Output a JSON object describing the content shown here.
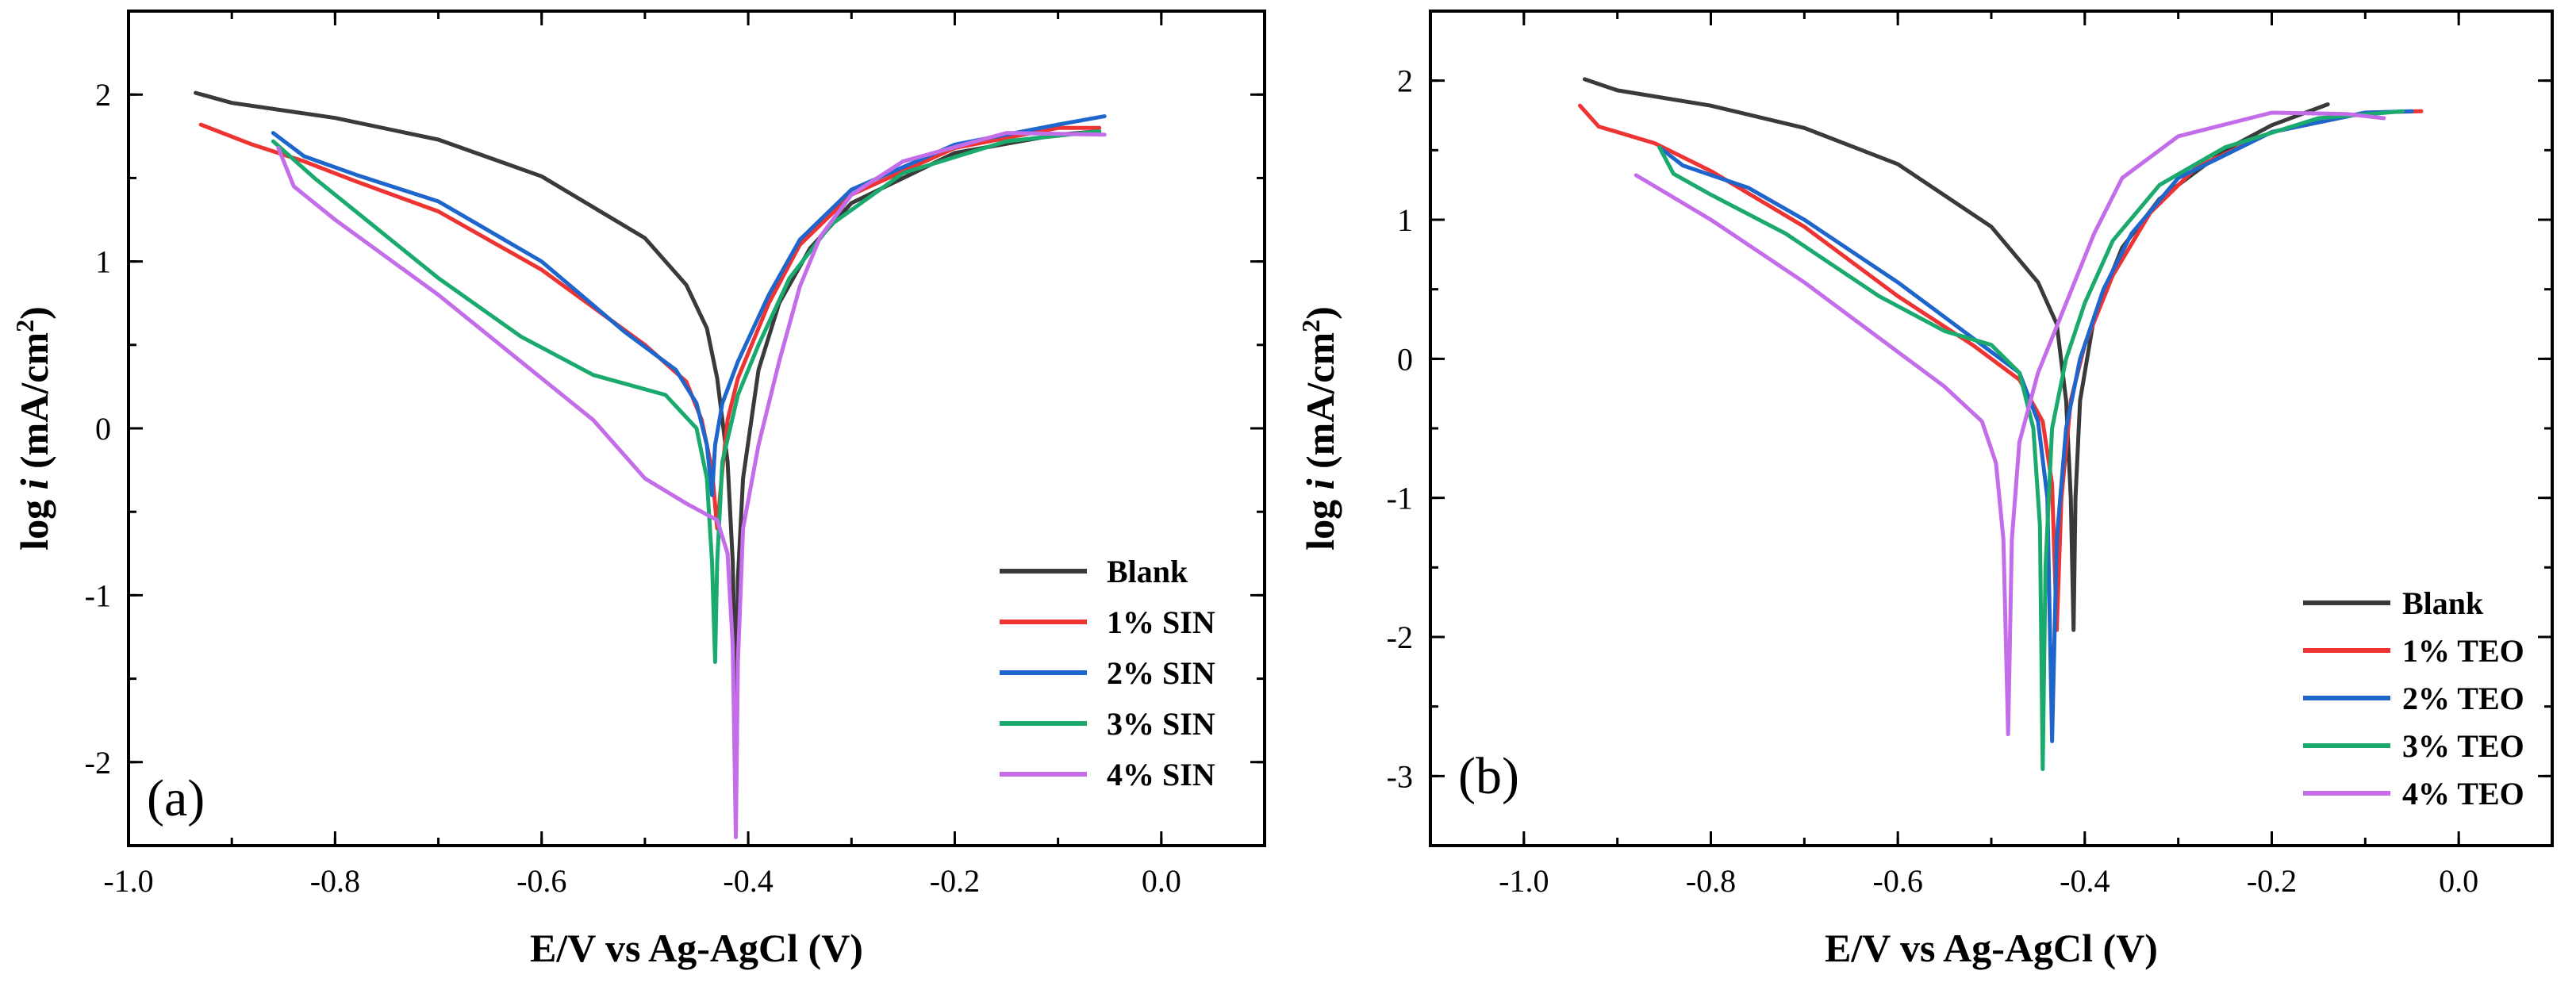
{
  "chart_data": [
    {
      "type": "line",
      "panel_label": "(a)",
      "xlabel": "E/V vs Ag-AgCl (V)",
      "ylabel_prefix": "log ",
      "ylabel_var": "i",
      "ylabel_units": " (mA/cm",
      "ylabel_sup": "2",
      "ylabel_close": ")",
      "xlim": [
        -1.0,
        0.1
      ],
      "ylim": [
        -2.5,
        2.5
      ],
      "xticks": [
        -1.0,
        -0.8,
        -0.6,
        -0.4,
        -0.2,
        0.0
      ],
      "xtick_labels": [
        "-1.0",
        "-0.8",
        "-0.6",
        "-0.4",
        "-0.2",
        "0.0"
      ],
      "yticks": [
        -2,
        -1,
        0,
        1,
        2
      ],
      "ytick_labels": [
        "-2",
        "-1",
        "0",
        "1",
        "2"
      ],
      "legend_position": "bottom-right",
      "series": [
        {
          "name": "Blank",
          "color": "#3a3a3a",
          "points": [
            [
              -0.935,
              2.01
            ],
            [
              -0.9,
              1.95
            ],
            [
              -0.8,
              1.86
            ],
            [
              -0.7,
              1.73
            ],
            [
              -0.6,
              1.51
            ],
            [
              -0.5,
              1.14
            ],
            [
              -0.46,
              0.86
            ],
            [
              -0.44,
              0.6
            ],
            [
              -0.43,
              0.3
            ],
            [
              -0.42,
              -0.2
            ],
            [
              -0.415,
              -0.8
            ],
            [
              -0.411,
              -1.9
            ],
            [
              -0.41,
              -0.9
            ],
            [
              -0.405,
              -0.3
            ],
            [
              -0.39,
              0.35
            ],
            [
              -0.37,
              0.75
            ],
            [
              -0.34,
              1.08
            ],
            [
              -0.3,
              1.35
            ],
            [
              -0.2,
              1.65
            ],
            [
              -0.1,
              1.76
            ],
            [
              -0.06,
              1.78
            ]
          ]
        },
        {
          "name": "1% SIN",
          "color": "#ee3333",
          "points": [
            [
              -0.93,
              1.82
            ],
            [
              -0.88,
              1.7
            ],
            [
              -0.83,
              1.6
            ],
            [
              -0.78,
              1.48
            ],
            [
              -0.7,
              1.3
            ],
            [
              -0.6,
              0.95
            ],
            [
              -0.5,
              0.5
            ],
            [
              -0.46,
              0.28
            ],
            [
              -0.445,
              0.05
            ],
            [
              -0.435,
              -0.25
            ],
            [
              -0.43,
              -0.6
            ],
            [
              -0.425,
              -0.25
            ],
            [
              -0.42,
              0.05
            ],
            [
              -0.41,
              0.3
            ],
            [
              -0.38,
              0.75
            ],
            [
              -0.35,
              1.1
            ],
            [
              -0.3,
              1.4
            ],
            [
              -0.2,
              1.68
            ],
            [
              -0.1,
              1.8
            ],
            [
              -0.06,
              1.8
            ]
          ]
        },
        {
          "name": "2% SIN",
          "color": "#1f66cc",
          "points": [
            [
              -0.86,
              1.77
            ],
            [
              -0.83,
              1.63
            ],
            [
              -0.78,
              1.52
            ],
            [
              -0.7,
              1.36
            ],
            [
              -0.6,
              1.0
            ],
            [
              -0.52,
              0.58
            ],
            [
              -0.47,
              0.35
            ],
            [
              -0.45,
              0.15
            ],
            [
              -0.44,
              -0.1
            ],
            [
              -0.435,
              -0.4
            ],
            [
              -0.432,
              -0.1
            ],
            [
              -0.425,
              0.15
            ],
            [
              -0.41,
              0.4
            ],
            [
              -0.38,
              0.8
            ],
            [
              -0.35,
              1.13
            ],
            [
              -0.3,
              1.43
            ],
            [
              -0.2,
              1.7
            ],
            [
              -0.1,
              1.82
            ],
            [
              -0.055,
              1.87
            ]
          ]
        },
        {
          "name": "3% SIN",
          "color": "#1aaa6e",
          "points": [
            [
              -0.86,
              1.72
            ],
            [
              -0.82,
              1.5
            ],
            [
              -0.76,
              1.2
            ],
            [
              -0.7,
              0.9
            ],
            [
              -0.62,
              0.55
            ],
            [
              -0.55,
              0.32
            ],
            [
              -0.48,
              0.2
            ],
            [
              -0.45,
              0.0
            ],
            [
              -0.44,
              -0.3
            ],
            [
              -0.435,
              -0.8
            ],
            [
              -0.432,
              -1.4
            ],
            [
              -0.43,
              -0.8
            ],
            [
              -0.425,
              -0.2
            ],
            [
              -0.41,
              0.2
            ],
            [
              -0.39,
              0.5
            ],
            [
              -0.36,
              0.9
            ],
            [
              -0.32,
              1.22
            ],
            [
              -0.25,
              1.53
            ],
            [
              -0.15,
              1.72
            ],
            [
              -0.06,
              1.78
            ]
          ]
        },
        {
          "name": "4% SIN",
          "color": "#c46de8",
          "points": [
            [
              -0.855,
              1.68
            ],
            [
              -0.84,
              1.45
            ],
            [
              -0.8,
              1.25
            ],
            [
              -0.7,
              0.8
            ],
            [
              -0.6,
              0.3
            ],
            [
              -0.55,
              0.05
            ],
            [
              -0.5,
              -0.3
            ],
            [
              -0.46,
              -0.45
            ],
            [
              -0.43,
              -0.55
            ],
            [
              -0.42,
              -0.75
            ],
            [
              -0.415,
              -1.3
            ],
            [
              -0.412,
              -2.45
            ],
            [
              -0.41,
              -1.4
            ],
            [
              -0.405,
              -0.6
            ],
            [
              -0.39,
              -0.1
            ],
            [
              -0.37,
              0.4
            ],
            [
              -0.35,
              0.85
            ],
            [
              -0.33,
              1.15
            ],
            [
              -0.3,
              1.4
            ],
            [
              -0.25,
              1.6
            ],
            [
              -0.15,
              1.77
            ],
            [
              -0.055,
              1.76
            ]
          ]
        }
      ]
    },
    {
      "type": "line",
      "panel_label": "(b)",
      "xlabel": "E/V vs Ag-AgCl (V)",
      "ylabel_prefix": "log ",
      "ylabel_var": "i",
      "ylabel_units": " (mA/cm",
      "ylabel_sup": "2",
      "ylabel_close": ")",
      "xlim": [
        -1.1,
        0.1
      ],
      "ylim": [
        -3.5,
        2.5
      ],
      "xticks": [
        -1.0,
        -0.8,
        -0.6,
        -0.4,
        -0.2,
        0.0
      ],
      "xtick_labels": [
        "-1.0",
        "-0.8",
        "-0.6",
        "-0.4",
        "-0.2",
        "0.0"
      ],
      "yticks": [
        -3,
        -2,
        -1,
        0,
        1,
        2
      ],
      "ytick_labels": [
        "-3",
        "-2",
        "-1",
        "0",
        "1",
        "2"
      ],
      "legend_position": "bottom-right",
      "series": [
        {
          "name": "Blank",
          "color": "#3a3a3a",
          "points": [
            [
              -0.935,
              2.01
            ],
            [
              -0.9,
              1.93
            ],
            [
              -0.8,
              1.82
            ],
            [
              -0.7,
              1.66
            ],
            [
              -0.6,
              1.4
            ],
            [
              -0.5,
              0.95
            ],
            [
              -0.45,
              0.55
            ],
            [
              -0.43,
              0.25
            ],
            [
              -0.42,
              -0.3
            ],
            [
              -0.415,
              -1.0
            ],
            [
              -0.412,
              -1.95
            ],
            [
              -0.41,
              -1.0
            ],
            [
              -0.405,
              -0.3
            ],
            [
              -0.39,
              0.3
            ],
            [
              -0.36,
              0.8
            ],
            [
              -0.32,
              1.15
            ],
            [
              -0.25,
              1.5
            ],
            [
              -0.2,
              1.68
            ],
            [
              -0.14,
              1.83
            ]
          ]
        },
        {
          "name": "1% TEO",
          "color": "#ee3333",
          "points": [
            [
              -0.94,
              1.82
            ],
            [
              -0.92,
              1.67
            ],
            [
              -0.86,
              1.55
            ],
            [
              -0.8,
              1.35
            ],
            [
              -0.7,
              0.95
            ],
            [
              -0.6,
              0.45
            ],
            [
              -0.52,
              0.1
            ],
            [
              -0.47,
              -0.15
            ],
            [
              -0.445,
              -0.45
            ],
            [
              -0.435,
              -0.9
            ],
            [
              -0.43,
              -1.95
            ],
            [
              -0.425,
              -1.0
            ],
            [
              -0.415,
              -0.3
            ],
            [
              -0.4,
              0.1
            ],
            [
              -0.37,
              0.6
            ],
            [
              -0.33,
              1.05
            ],
            [
              -0.28,
              1.38
            ],
            [
              -0.2,
              1.63
            ],
            [
              -0.1,
              1.77
            ],
            [
              -0.04,
              1.78
            ]
          ]
        },
        {
          "name": "2% TEO",
          "color": "#1f66cc",
          "points": [
            [
              -0.855,
              1.52
            ],
            [
              -0.83,
              1.39
            ],
            [
              -0.76,
              1.23
            ],
            [
              -0.7,
              1.0
            ],
            [
              -0.6,
              0.55
            ],
            [
              -0.52,
              0.15
            ],
            [
              -0.47,
              -0.1
            ],
            [
              -0.45,
              -0.45
            ],
            [
              -0.44,
              -1.0
            ],
            [
              -0.435,
              -2.75
            ],
            [
              -0.43,
              -1.3
            ],
            [
              -0.42,
              -0.5
            ],
            [
              -0.405,
              0.0
            ],
            [
              -0.38,
              0.5
            ],
            [
              -0.35,
              0.9
            ],
            [
              -0.3,
              1.3
            ],
            [
              -0.2,
              1.63
            ],
            [
              -0.1,
              1.77
            ],
            [
              -0.05,
              1.78
            ]
          ]
        },
        {
          "name": "3% TEO",
          "color": "#1aaa6e",
          "points": [
            [
              -0.855,
              1.52
            ],
            [
              -0.84,
              1.33
            ],
            [
              -0.8,
              1.18
            ],
            [
              -0.72,
              0.9
            ],
            [
              -0.62,
              0.45
            ],
            [
              -0.55,
              0.2
            ],
            [
              -0.5,
              0.1
            ],
            [
              -0.47,
              -0.1
            ],
            [
              -0.455,
              -0.5
            ],
            [
              -0.448,
              -1.2
            ],
            [
              -0.445,
              -2.95
            ],
            [
              -0.442,
              -1.5
            ],
            [
              -0.435,
              -0.5
            ],
            [
              -0.42,
              0.0
            ],
            [
              -0.4,
              0.4
            ],
            [
              -0.37,
              0.85
            ],
            [
              -0.32,
              1.25
            ],
            [
              -0.25,
              1.52
            ],
            [
              -0.15,
              1.73
            ],
            [
              -0.06,
              1.78
            ]
          ]
        },
        {
          "name": "4% TEO",
          "color": "#c46de8",
          "points": [
            [
              -0.88,
              1.32
            ],
            [
              -0.85,
              1.2
            ],
            [
              -0.8,
              1.0
            ],
            [
              -0.7,
              0.55
            ],
            [
              -0.6,
              0.05
            ],
            [
              -0.55,
              -0.2
            ],
            [
              -0.51,
              -0.45
            ],
            [
              -0.495,
              -0.75
            ],
            [
              -0.487,
              -1.3
            ],
            [
              -0.482,
              -2.7
            ],
            [
              -0.478,
              -1.3
            ],
            [
              -0.47,
              -0.6
            ],
            [
              -0.45,
              -0.1
            ],
            [
              -0.42,
              0.4
            ],
            [
              -0.39,
              0.9
            ],
            [
              -0.36,
              1.3
            ],
            [
              -0.3,
              1.6
            ],
            [
              -0.2,
              1.77
            ],
            [
              -0.12,
              1.76
            ],
            [
              -0.08,
              1.73
            ]
          ]
        }
      ]
    }
  ]
}
